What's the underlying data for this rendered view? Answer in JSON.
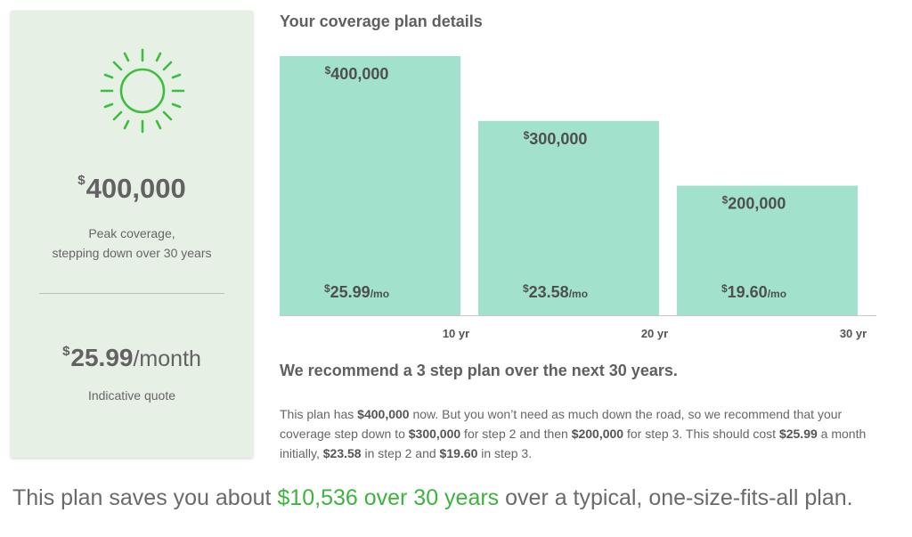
{
  "summary": {
    "icon": "sun-icon",
    "peak_currency": "$",
    "peak_amount": "400,000",
    "peak_caption_line1": "Peak coverage,",
    "peak_caption_line2": "stepping down over 30 years",
    "monthly_currency": "$",
    "monthly_amount": "25.99",
    "monthly_unit": "/month",
    "quote_caption": "Indicative quote"
  },
  "section_title": "Your coverage plan details",
  "chart_data": {
    "type": "bar",
    "categories": [
      "10 yr",
      "20 yr",
      "30 yr"
    ],
    "values": [
      400000,
      300000,
      200000
    ],
    "value_labels": [
      "400,000",
      "300,000",
      "200,000"
    ],
    "monthly_labels": [
      "25.99",
      "23.58",
      "19.60"
    ],
    "currency": "$",
    "monthly_suffix": "/mo",
    "ylim": [
      0,
      400000
    ],
    "bar_color": "#a2e2cc",
    "grid": false
  },
  "recommendation": {
    "title": "We recommend a 3 step plan over the next 30 years.",
    "p1": "This plan has ",
    "b1": "$400,000",
    "p2": " now. But you won’t need as much down the road, so we recommend that your coverage step down to ",
    "b2": "$300,000",
    "p3": " for step 2 and then ",
    "b3": "$200,000",
    "p4": " for step 3. This should cost ",
    "b4": "$25.99",
    "p5": " a month initially, ",
    "b5": "$23.58",
    "p6": " in step 2 and ",
    "b6": "$19.60",
    "p7": " in step 3."
  },
  "savings": {
    "before": "This plan saves you about ",
    "highlight": "$10,536 over 30 years",
    "after": " over a typical, one-size-fits-all plan."
  },
  "colors": {
    "accent_green": "#3db43d",
    "card_bg": "#e6f0e5",
    "bar": "#a2e2cc"
  }
}
